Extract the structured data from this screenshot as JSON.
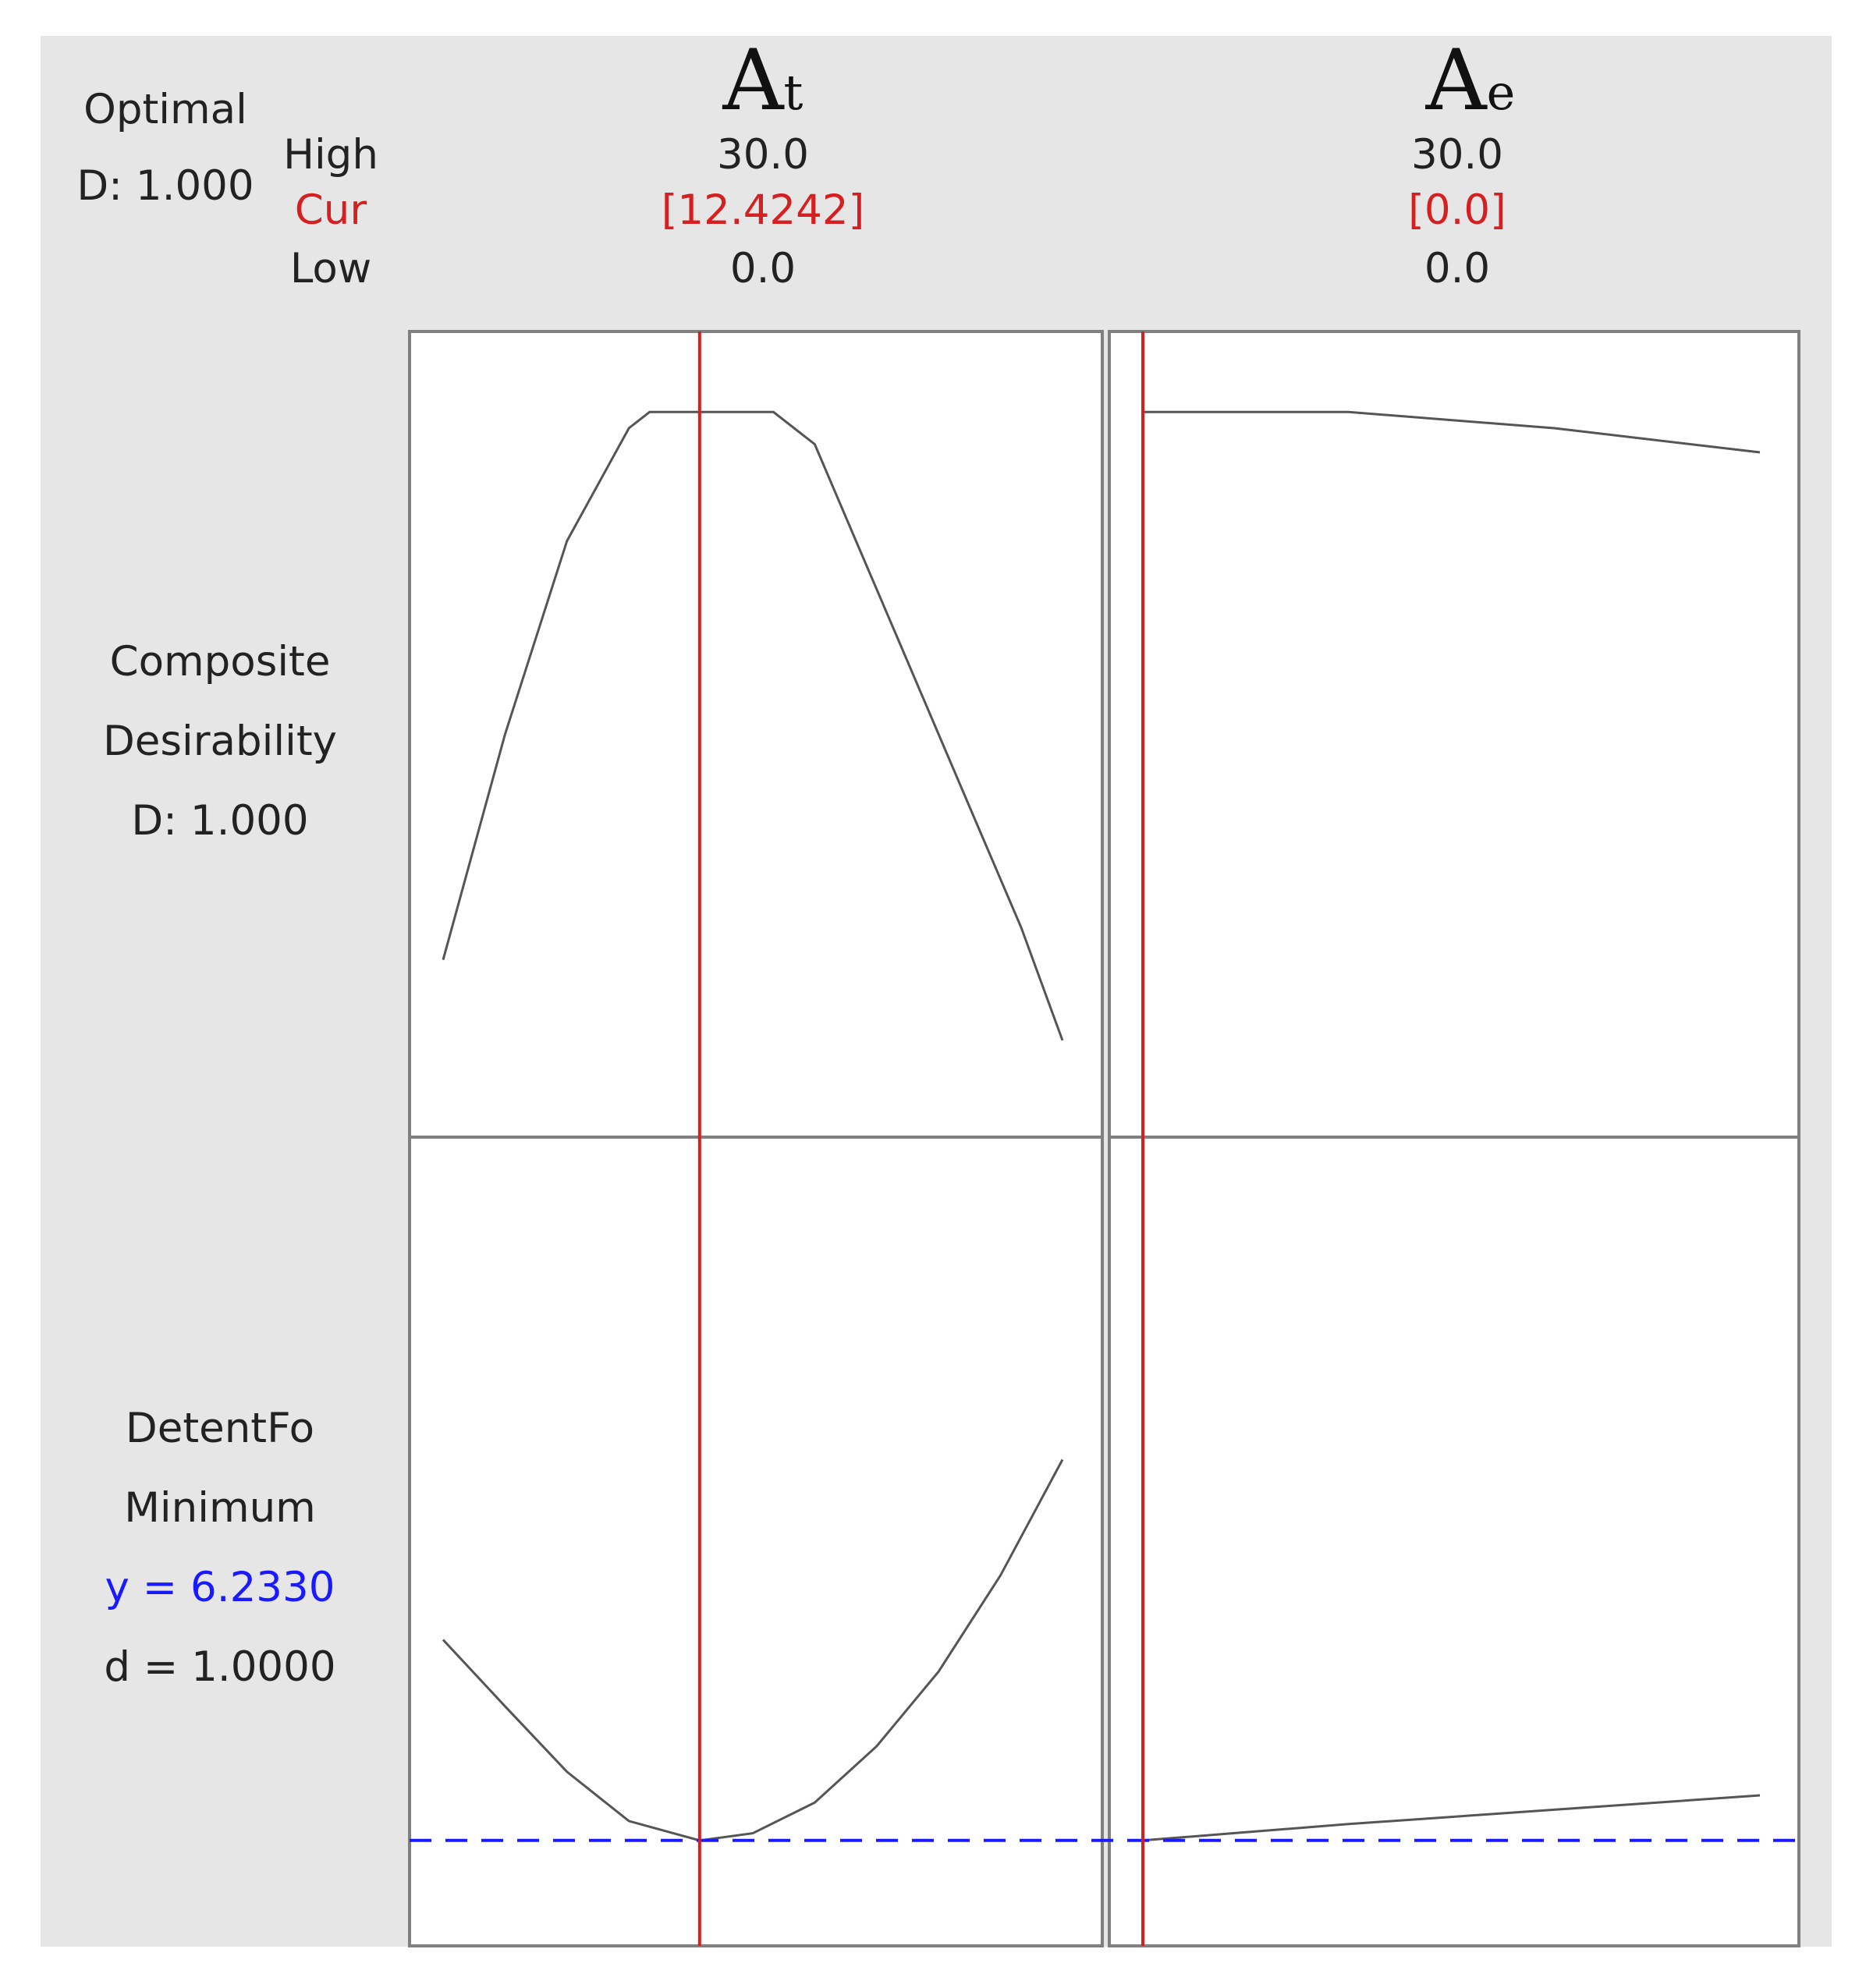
{
  "header": {
    "optimal_label": "Optimal",
    "optimal_d": "D: 1.000",
    "high_label": "High",
    "cur_label": "Cur",
    "low_label": "Low"
  },
  "factors": [
    {
      "name": "A",
      "sub": "t",
      "high": "30.0",
      "cur": "[12.4242]",
      "low": "0.0"
    },
    {
      "name": "A",
      "sub": "e",
      "high": "30.0",
      "cur": "[0.0]",
      "low": "0.0"
    }
  ],
  "responses": [
    {
      "lines": [
        "Composite",
        "Desirability",
        "D: 1.000"
      ]
    },
    {
      "lines": [
        "DetentFo",
        "Minimum"
      ],
      "y_text": "y = 6.2330",
      "d_text": "d = 1.0000"
    }
  ],
  "colors": {
    "curve": "#555555",
    "current": "#d42020",
    "target": "#1a1aff",
    "panel_bg": "#e6e6e6",
    "frame": "#808080"
  },
  "chart_data": {
    "type": "line",
    "x_ranges": {
      "At": [
        0,
        30
      ],
      "Ae": [
        0,
        30
      ]
    },
    "current": {
      "At": 12.4242,
      "Ae": 0.0
    },
    "composite_desirability": {
      "ylim": [
        0.55,
        1.05
      ],
      "At": {
        "x": [
          0,
          3,
          6,
          9,
          10,
          12,
          14,
          16,
          18,
          20,
          22,
          24,
          26,
          28,
          30
        ],
        "y": [
          0.66,
          0.8,
          0.92,
          0.99,
          1.0,
          1.0,
          1.0,
          1.0,
          0.98,
          0.92,
          0.86,
          0.8,
          0.74,
          0.68,
          0.61
        ]
      },
      "Ae": {
        "x": [
          0,
          10,
          20,
          30
        ],
        "y": [
          1.0,
          1.0,
          0.99,
          0.975
        ]
      }
    },
    "detent_force": {
      "target_y": 6.233,
      "ylim": [
        6.13,
        6.92
      ],
      "At": {
        "x": [
          0,
          3,
          6,
          9,
          12.4242,
          15,
          18,
          21,
          24,
          27,
          30
        ],
        "y": [
          6.429,
          6.364,
          6.3,
          6.252,
          6.233,
          6.24,
          6.27,
          6.325,
          6.398,
          6.492,
          6.605
        ]
      },
      "Ae": {
        "x": [
          0,
          5,
          10,
          15,
          20,
          25,
          30
        ],
        "y": [
          6.233,
          6.241,
          6.249,
          6.256,
          6.263,
          6.27,
          6.277
        ]
      }
    }
  }
}
